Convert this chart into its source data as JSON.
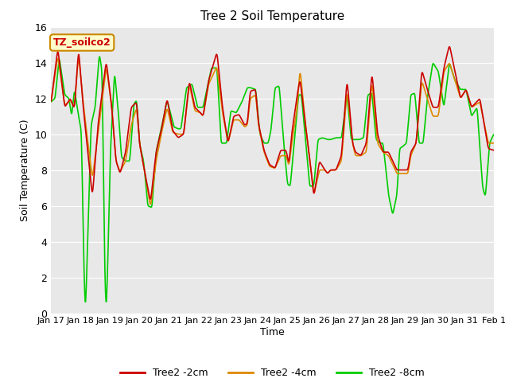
{
  "title": "Tree 2 Soil Temperature",
  "ylabel": "Soil Temperature (C)",
  "xlabel": "Time",
  "annotation": "TZ_soilco2",
  "ylim": [
    0,
    16
  ],
  "yticks": [
    0,
    2,
    4,
    6,
    8,
    10,
    12,
    14,
    16
  ],
  "xtick_labels": [
    "Jan 17",
    "Jan 18",
    "Jan 19",
    "Jan 20",
    "Jan 21",
    "Jan 22",
    "Jan 23",
    "Jan 24",
    "Jan 25",
    "Jan 26",
    "Jan 27",
    "Jan 28",
    "Jan 29",
    "Jan 30",
    "Jan 31",
    "Feb 1"
  ],
  "colors": {
    "2cm": "#cc0000",
    "4cm": "#dd8800",
    "8cm": "#00cc00"
  },
  "legend_labels": [
    "Tree2 -2cm",
    "Tree2 -4cm",
    "Tree2 -8cm"
  ],
  "bg_color": "#e8e8e8",
  "line_width": 1.2,
  "t2cm_keypoints": [
    [
      0.0,
      11.7
    ],
    [
      0.25,
      14.8
    ],
    [
      0.5,
      11.5
    ],
    [
      0.7,
      12.0
    ],
    [
      0.85,
      11.4
    ],
    [
      1.0,
      14.8
    ],
    [
      1.15,
      11.8
    ],
    [
      1.3,
      9.5
    ],
    [
      1.5,
      6.5
    ],
    [
      1.7,
      10.5
    ],
    [
      2.0,
      14.1
    ],
    [
      2.2,
      11.5
    ],
    [
      2.35,
      8.5
    ],
    [
      2.5,
      7.8
    ],
    [
      2.7,
      9.0
    ],
    [
      2.9,
      11.5
    ],
    [
      3.1,
      11.8
    ],
    [
      3.2,
      9.5
    ],
    [
      3.4,
      7.8
    ],
    [
      3.6,
      6.2
    ],
    [
      3.8,
      9.0
    ],
    [
      4.0,
      10.3
    ],
    [
      4.2,
      12.0
    ],
    [
      4.4,
      10.2
    ],
    [
      4.6,
      9.8
    ],
    [
      4.8,
      10.0
    ],
    [
      5.0,
      13.0
    ],
    [
      5.2,
      11.5
    ],
    [
      5.4,
      11.2
    ],
    [
      5.5,
      11.0
    ],
    [
      5.7,
      13.0
    ],
    [
      6.0,
      14.6
    ],
    [
      6.2,
      11.5
    ],
    [
      6.4,
      9.5
    ],
    [
      6.6,
      11.0
    ],
    [
      6.8,
      11.1
    ],
    [
      7.0,
      10.5
    ],
    [
      7.1,
      10.6
    ],
    [
      7.2,
      12.4
    ],
    [
      7.4,
      12.5
    ],
    [
      7.5,
      10.6
    ],
    [
      7.7,
      9.1
    ],
    [
      7.9,
      8.3
    ],
    [
      8.1,
      8.1
    ],
    [
      8.3,
      9.1
    ],
    [
      8.5,
      9.1
    ],
    [
      8.6,
      8.3
    ],
    [
      8.7,
      10.0
    ],
    [
      8.9,
      12.2
    ],
    [
      9.0,
      13.1
    ],
    [
      9.2,
      10.5
    ],
    [
      9.4,
      8.0
    ],
    [
      9.5,
      6.5
    ],
    [
      9.7,
      8.5
    ],
    [
      9.9,
      8.0
    ],
    [
      10.0,
      7.8
    ],
    [
      10.1,
      8.0
    ],
    [
      10.3,
      8.0
    ],
    [
      10.5,
      8.8
    ],
    [
      10.7,
      13.1
    ],
    [
      10.9,
      9.5
    ],
    [
      11.0,
      9.0
    ],
    [
      11.2,
      8.8
    ],
    [
      11.4,
      9.5
    ],
    [
      11.6,
      13.5
    ],
    [
      11.8,
      10.0
    ],
    [
      12.0,
      9.0
    ],
    [
      12.2,
      9.0
    ],
    [
      12.5,
      8.0
    ],
    [
      12.7,
      8.0
    ],
    [
      12.9,
      8.0
    ],
    [
      13.0,
      9.0
    ],
    [
      13.2,
      9.5
    ],
    [
      13.4,
      13.6
    ],
    [
      13.6,
      12.5
    ],
    [
      13.8,
      11.5
    ],
    [
      14.0,
      11.5
    ],
    [
      14.2,
      13.7
    ],
    [
      14.4,
      15.0
    ],
    [
      14.6,
      13.5
    ],
    [
      14.8,
      12.0
    ],
    [
      15.0,
      12.5
    ],
    [
      15.2,
      11.5
    ],
    [
      15.5,
      12.0
    ],
    [
      15.8,
      9.2
    ],
    [
      16.0,
      9.1
    ]
  ],
  "t4cm_keypoints": [
    [
      0.0,
      11.7
    ],
    [
      0.25,
      14.4
    ],
    [
      0.5,
      11.6
    ],
    [
      0.7,
      11.9
    ],
    [
      0.85,
      11.5
    ],
    [
      1.0,
      14.5
    ],
    [
      1.15,
      12.0
    ],
    [
      1.3,
      10.0
    ],
    [
      1.5,
      7.5
    ],
    [
      1.7,
      10.0
    ],
    [
      2.0,
      13.8
    ],
    [
      2.2,
      11.5
    ],
    [
      2.35,
      8.5
    ],
    [
      2.5,
      7.9
    ],
    [
      2.7,
      8.5
    ],
    [
      2.9,
      10.5
    ],
    [
      3.1,
      11.5
    ],
    [
      3.2,
      9.5
    ],
    [
      3.4,
      7.8
    ],
    [
      3.6,
      5.9
    ],
    [
      3.8,
      8.5
    ],
    [
      4.0,
      10.1
    ],
    [
      4.2,
      11.5
    ],
    [
      4.4,
      10.1
    ],
    [
      4.6,
      10.0
    ],
    [
      4.8,
      10.0
    ],
    [
      5.0,
      12.8
    ],
    [
      5.2,
      11.3
    ],
    [
      5.4,
      11.2
    ],
    [
      5.5,
      11.0
    ],
    [
      5.7,
      12.8
    ],
    [
      6.0,
      13.8
    ],
    [
      6.2,
      11.2
    ],
    [
      6.4,
      9.5
    ],
    [
      6.6,
      10.8
    ],
    [
      6.8,
      10.8
    ],
    [
      7.0,
      10.4
    ],
    [
      7.1,
      10.5
    ],
    [
      7.2,
      12.0
    ],
    [
      7.4,
      12.2
    ],
    [
      7.5,
      10.5
    ],
    [
      7.7,
      9.0
    ],
    [
      7.9,
      8.2
    ],
    [
      8.1,
      8.1
    ],
    [
      8.3,
      8.8
    ],
    [
      8.5,
      8.8
    ],
    [
      8.6,
      8.2
    ],
    [
      8.7,
      9.5
    ],
    [
      8.9,
      11.5
    ],
    [
      9.0,
      13.7
    ],
    [
      9.2,
      10.5
    ],
    [
      9.4,
      8.0
    ],
    [
      9.5,
      6.6
    ],
    [
      9.7,
      8.0
    ],
    [
      9.9,
      8.0
    ],
    [
      10.0,
      7.8
    ],
    [
      10.1,
      8.0
    ],
    [
      10.3,
      8.0
    ],
    [
      10.5,
      8.5
    ],
    [
      10.7,
      12.5
    ],
    [
      10.9,
      9.5
    ],
    [
      11.0,
      8.8
    ],
    [
      11.2,
      8.8
    ],
    [
      11.4,
      9.0
    ],
    [
      11.6,
      13.0
    ],
    [
      11.8,
      9.5
    ],
    [
      12.0,
      9.0
    ],
    [
      12.2,
      8.8
    ],
    [
      12.5,
      7.8
    ],
    [
      12.7,
      7.8
    ],
    [
      12.9,
      7.8
    ],
    [
      13.0,
      8.8
    ],
    [
      13.2,
      9.5
    ],
    [
      13.4,
      13.0
    ],
    [
      13.6,
      12.0
    ],
    [
      13.8,
      11.0
    ],
    [
      14.0,
      11.0
    ],
    [
      14.2,
      13.5
    ],
    [
      14.4,
      14.0
    ],
    [
      14.6,
      13.0
    ],
    [
      14.8,
      12.0
    ],
    [
      15.0,
      12.5
    ],
    [
      15.2,
      11.5
    ],
    [
      15.5,
      11.8
    ],
    [
      15.8,
      9.5
    ],
    [
      16.0,
      9.5
    ]
  ],
  "t8cm_keypoints": [
    [
      0.0,
      11.8
    ],
    [
      0.15,
      12.0
    ],
    [
      0.3,
      14.3
    ],
    [
      0.5,
      12.2
    ],
    [
      0.65,
      12.0
    ],
    [
      0.75,
      11.0
    ],
    [
      0.85,
      12.5
    ],
    [
      1.0,
      11.0
    ],
    [
      1.1,
      10.2
    ],
    [
      1.2,
      2.0
    ],
    [
      1.25,
      0.1
    ],
    [
      1.3,
      2.5
    ],
    [
      1.45,
      10.5
    ],
    [
      1.6,
      11.5
    ],
    [
      1.75,
      14.5
    ],
    [
      1.85,
      13.5
    ],
    [
      1.95,
      2.0
    ],
    [
      2.0,
      0.1
    ],
    [
      2.05,
      2.5
    ],
    [
      2.15,
      9.0
    ],
    [
      2.3,
      13.5
    ],
    [
      2.45,
      11.0
    ],
    [
      2.55,
      8.7
    ],
    [
      2.7,
      8.5
    ],
    [
      2.85,
      8.5
    ],
    [
      3.0,
      11.7
    ],
    [
      3.1,
      11.9
    ],
    [
      3.2,
      9.5
    ],
    [
      3.35,
      8.5
    ],
    [
      3.5,
      6.0
    ],
    [
      3.65,
      5.9
    ],
    [
      3.8,
      9.0
    ],
    [
      4.0,
      10.4
    ],
    [
      4.2,
      11.9
    ],
    [
      4.45,
      10.4
    ],
    [
      4.6,
      10.3
    ],
    [
      4.7,
      10.3
    ],
    [
      4.9,
      12.6
    ],
    [
      5.1,
      12.8
    ],
    [
      5.3,
      11.5
    ],
    [
      5.5,
      11.5
    ],
    [
      5.65,
      12.6
    ],
    [
      5.8,
      13.7
    ],
    [
      6.0,
      13.7
    ],
    [
      6.15,
      9.5
    ],
    [
      6.35,
      9.5
    ],
    [
      6.5,
      11.3
    ],
    [
      6.7,
      11.2
    ],
    [
      6.9,
      11.8
    ],
    [
      7.1,
      12.6
    ],
    [
      7.2,
      12.6
    ],
    [
      7.4,
      12.5
    ],
    [
      7.55,
      10.0
    ],
    [
      7.7,
      9.5
    ],
    [
      7.85,
      9.5
    ],
    [
      7.95,
      10.2
    ],
    [
      8.1,
      12.6
    ],
    [
      8.25,
      12.7
    ],
    [
      8.4,
      9.7
    ],
    [
      8.55,
      7.2
    ],
    [
      8.65,
      7.1
    ],
    [
      8.8,
      9.7
    ],
    [
      8.95,
      12.2
    ],
    [
      9.05,
      12.2
    ],
    [
      9.2,
      9.7
    ],
    [
      9.35,
      7.1
    ],
    [
      9.5,
      7.1
    ],
    [
      9.65,
      9.7
    ],
    [
      9.8,
      9.8
    ],
    [
      10.0,
      9.7
    ],
    [
      10.1,
      9.7
    ],
    [
      10.3,
      9.8
    ],
    [
      10.5,
      9.8
    ],
    [
      10.7,
      12.2
    ],
    [
      10.85,
      9.7
    ],
    [
      11.0,
      9.7
    ],
    [
      11.15,
      9.7
    ],
    [
      11.3,
      9.8
    ],
    [
      11.45,
      12.2
    ],
    [
      11.6,
      12.3
    ],
    [
      11.75,
      9.7
    ],
    [
      11.9,
      9.5
    ],
    [
      12.0,
      9.5
    ],
    [
      12.2,
      6.6
    ],
    [
      12.35,
      5.5
    ],
    [
      12.5,
      6.6
    ],
    [
      12.6,
      9.2
    ],
    [
      12.7,
      9.3
    ],
    [
      12.85,
      9.5
    ],
    [
      13.0,
      12.2
    ],
    [
      13.15,
      12.3
    ],
    [
      13.3,
      9.5
    ],
    [
      13.45,
      9.5
    ],
    [
      13.6,
      12.0
    ],
    [
      13.8,
      14.0
    ],
    [
      14.0,
      13.5
    ],
    [
      14.2,
      11.5
    ],
    [
      14.4,
      14.0
    ],
    [
      14.6,
      13.0
    ],
    [
      14.8,
      12.5
    ],
    [
      15.0,
      12.5
    ],
    [
      15.2,
      11.0
    ],
    [
      15.4,
      11.5
    ],
    [
      15.6,
      7.0
    ],
    [
      15.7,
      6.5
    ],
    [
      15.85,
      9.5
    ],
    [
      16.0,
      10.0
    ]
  ]
}
